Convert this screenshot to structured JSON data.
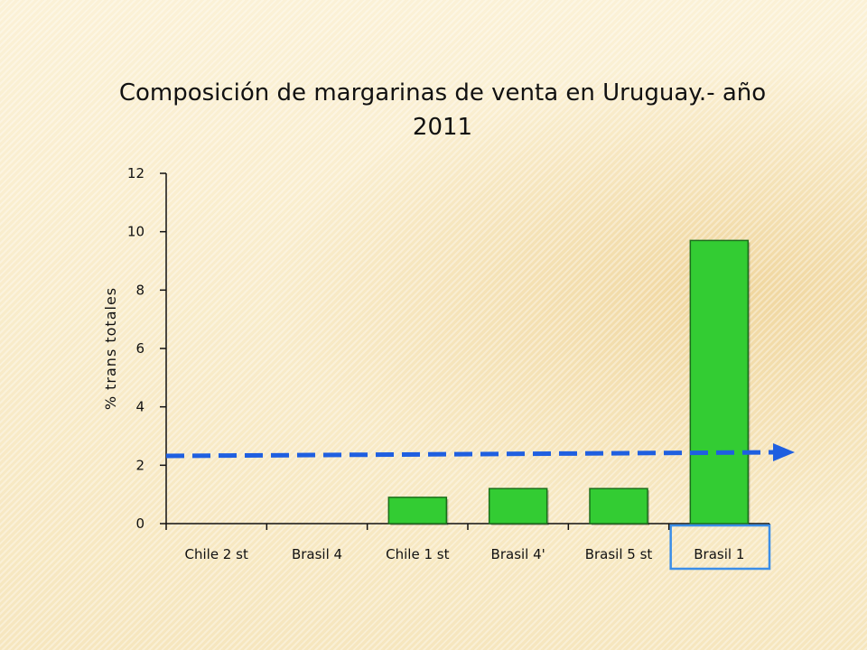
{
  "chart_data": {
    "type": "bar",
    "title": "Composición de margarinas de venta en Uruguay.- año 2011",
    "ylabel": "% trans totales",
    "xlabel": "",
    "categories": [
      "Chile 2 st",
      "Brasil 4",
      "Chile 1 st",
      "Brasil 4'",
      "Brasil 5 st",
      "Brasil 1"
    ],
    "values": [
      0,
      0,
      0.9,
      1.2,
      1.2,
      9.7
    ],
    "ylim": [
      0,
      12
    ],
    "yticks": [
      "0",
      "2",
      "4",
      "6",
      "8",
      "10",
      "12"
    ],
    "grid": false,
    "bar_color": "#33cc33",
    "reference_line": {
      "y": 2.35,
      "style": "dashed-arrow",
      "color": "#1f5fe0"
    },
    "highlighted_category": "Brasil 1",
    "highlight_color": "#3b8ee8"
  }
}
